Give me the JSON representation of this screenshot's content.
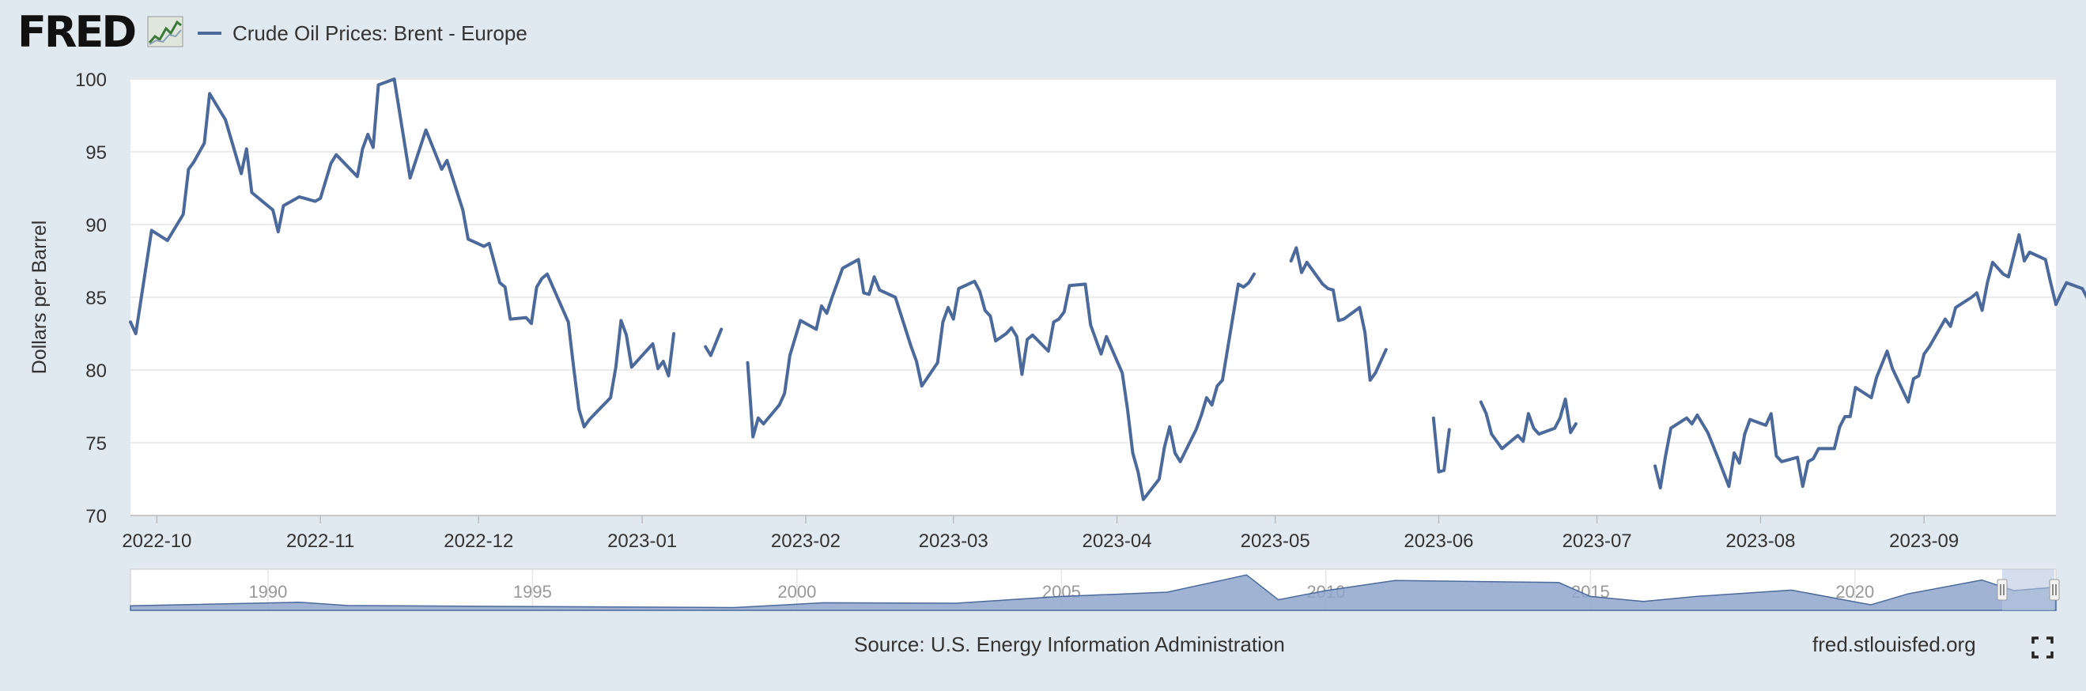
{
  "brand": {
    "logo": "FRED",
    "icon": "line-chart-icon"
  },
  "colors": {
    "series": "#4b6a9b",
    "navigator_fill": "#8fa6cc",
    "navigator_mask": "#b6c6e0",
    "background": "#e1e9f0"
  },
  "source": "Source: U.S. Energy Information Administration",
  "site": "fred.stlouisfed.org",
  "chart_data": {
    "type": "line",
    "title": "",
    "ylabel": "Dollars per Barrel",
    "ylim": [
      70,
      100
    ],
    "yticks": [
      70,
      75,
      80,
      85,
      90,
      95,
      100
    ],
    "xlim": [
      "2022-09-26",
      "2023-09-26"
    ],
    "xticks": [
      "2022-10",
      "2022-11",
      "2022-12",
      "2023-01",
      "2023-02",
      "2023-03",
      "2023-04",
      "2023-05",
      "2023-06",
      "2023-07",
      "2023-08",
      "2023-09"
    ],
    "grid": true,
    "legend_position": "top-left",
    "series": [
      {
        "name": "Crude Oil Prices: Brent - Europe",
        "segments": [
          [
            [
              "2022-09-26",
              83.3
            ],
            [
              "2022-09-27",
              82.5
            ],
            [
              "2022-09-30",
              89.6
            ],
            [
              "2022-10-03",
              88.9
            ],
            [
              "2022-10-06",
              90.7
            ],
            [
              "2022-10-07",
              93.8
            ],
            [
              "2022-10-08",
              94.3
            ],
            [
              "2022-10-10",
              95.6
            ],
            [
              "2022-10-11",
              99.0
            ],
            [
              "2022-10-14",
              97.2
            ],
            [
              "2022-10-17",
              93.5
            ],
            [
              "2022-10-18",
              95.2
            ],
            [
              "2022-10-19",
              92.2
            ],
            [
              "2022-10-23",
              91.0
            ],
            [
              "2022-10-24",
              89.5
            ],
            [
              "2022-10-25",
              91.3
            ],
            [
              "2022-10-28",
              91.9
            ],
            [
              "2022-10-31",
              91.6
            ],
            [
              "2022-11-01",
              91.8
            ],
            [
              "2022-11-03",
              94.2
            ],
            [
              "2022-11-04",
              94.8
            ],
            [
              "2022-11-08",
              93.3
            ],
            [
              "2022-11-09",
              95.2
            ],
            [
              "2022-11-10",
              96.2
            ],
            [
              "2022-11-11",
              95.3
            ],
            [
              "2022-11-12",
              99.6
            ],
            [
              "2022-11-15",
              100.0
            ],
            [
              "2022-11-18",
              93.2
            ],
            [
              "2022-11-21",
              96.5
            ],
            [
              "2022-11-24",
              93.8
            ],
            [
              "2022-11-25",
              94.4
            ],
            [
              "2022-11-28",
              91.0
            ],
            [
              "2022-11-29",
              89.0
            ],
            [
              "2022-12-02",
              88.5
            ],
            [
              "2022-12-03",
              88.7
            ],
            [
              "2022-12-05",
              86.0
            ],
            [
              "2022-12-06",
              85.7
            ],
            [
              "2022-12-07",
              83.5
            ],
            [
              "2022-12-10",
              83.6
            ],
            [
              "2022-12-11",
              83.2
            ],
            [
              "2022-12-12",
              85.7
            ],
            [
              "2022-12-13",
              86.3
            ],
            [
              "2022-12-14",
              86.6
            ],
            [
              "2022-12-18",
              83.3
            ],
            [
              "2022-12-19",
              80.2
            ],
            [
              "2022-12-20",
              77.3
            ],
            [
              "2022-12-21",
              76.1
            ],
            [
              "2022-12-22",
              76.6
            ],
            [
              "2022-12-26",
              78.1
            ],
            [
              "2022-12-27",
              80.2
            ],
            [
              "2022-12-28",
              83.4
            ],
            [
              "2022-12-29",
              82.4
            ],
            [
              "2022-12-30",
              80.2
            ],
            [
              "2023-01-03",
              81.8
            ],
            [
              "2023-01-04",
              80.1
            ],
            [
              "2023-01-05",
              80.6
            ],
            [
              "2023-01-06",
              79.6
            ],
            [
              "2023-01-07",
              82.5
            ]
          ],
          [
            [
              "2023-01-13",
              81.6
            ],
            [
              "2023-01-14",
              81.0
            ],
            [
              "2023-01-16",
              82.8
            ]
          ],
          [
            [
              "2023-01-21",
              80.5
            ],
            [
              "2023-01-22",
              75.4
            ],
            [
              "2023-01-23",
              76.7
            ],
            [
              "2023-01-24",
              76.3
            ],
            [
              "2023-01-27",
              77.6
            ],
            [
              "2023-01-28",
              78.4
            ],
            [
              "2023-01-29",
              81.0
            ],
            [
              "2023-01-31",
              83.4
            ],
            [
              "2023-02-03",
              82.8
            ],
            [
              "2023-02-04",
              84.4
            ],
            [
              "2023-02-05",
              83.9
            ],
            [
              "2023-02-06",
              85.0
            ],
            [
              "2023-02-08",
              87.0
            ],
            [
              "2023-02-11",
              87.6
            ],
            [
              "2023-02-12",
              85.3
            ],
            [
              "2023-02-13",
              85.2
            ],
            [
              "2023-02-14",
              86.4
            ],
            [
              "2023-02-15",
              85.5
            ],
            [
              "2023-02-18",
              85.0
            ],
            [
              "2023-02-21",
              81.6
            ],
            [
              "2023-02-22",
              80.6
            ],
            [
              "2023-02-23",
              78.9
            ],
            [
              "2023-02-26",
              80.5
            ],
            [
              "2023-02-27",
              83.3
            ],
            [
              "2023-02-28",
              84.3
            ],
            [
              "2023-03-01",
              83.5
            ],
            [
              "2023-03-02",
              85.6
            ],
            [
              "2023-03-05",
              86.1
            ],
            [
              "2023-03-06",
              85.4
            ],
            [
              "2023-03-07",
              84.1
            ],
            [
              "2023-03-08",
              83.7
            ],
            [
              "2023-03-09",
              82.0
            ],
            [
              "2023-03-11",
              82.5
            ],
            [
              "2023-03-12",
              82.9
            ],
            [
              "2023-03-13",
              82.3
            ],
            [
              "2023-03-14",
              79.7
            ],
            [
              "2023-03-15",
              82.1
            ],
            [
              "2023-03-16",
              82.4
            ],
            [
              "2023-03-19",
              81.3
            ],
            [
              "2023-03-20",
              83.3
            ],
            [
              "2023-03-21",
              83.5
            ],
            [
              "2023-03-22",
              84.0
            ],
            [
              "2023-03-23",
              85.8
            ],
            [
              "2023-03-26",
              85.9
            ],
            [
              "2023-03-27",
              83.1
            ],
            [
              "2023-03-29",
              81.1
            ],
            [
              "2023-03-30",
              82.3
            ],
            [
              "2023-04-02",
              79.8
            ],
            [
              "2023-04-03",
              77.3
            ],
            [
              "2023-04-04",
              74.3
            ],
            [
              "2023-04-05",
              73.0
            ],
            [
              "2023-04-06",
              71.1
            ],
            [
              "2023-04-09",
              72.5
            ],
            [
              "2023-04-10",
              74.7
            ],
            [
              "2023-04-11",
              76.1
            ],
            [
              "2023-04-12",
              74.3
            ],
            [
              "2023-04-13",
              73.7
            ],
            [
              "2023-04-16",
              75.9
            ],
            [
              "2023-04-17",
              76.9
            ],
            [
              "2023-04-18",
              78.1
            ],
            [
              "2023-04-19",
              77.6
            ],
            [
              "2023-04-20",
              78.9
            ],
            [
              "2023-04-21",
              79.3
            ],
            [
              "2023-04-24",
              85.9
            ],
            [
              "2023-04-25",
              85.7
            ],
            [
              "2023-04-26",
              86.0
            ],
            [
              "2023-04-27",
              86.6
            ]
          ],
          [
            [
              "2023-05-04",
              87.5
            ],
            [
              "2023-05-05",
              88.4
            ],
            [
              "2023-05-06",
              86.7
            ],
            [
              "2023-05-07",
              87.4
            ],
            [
              "2023-05-10",
              85.9
            ],
            [
              "2023-05-11",
              85.6
            ],
            [
              "2023-05-12",
              85.5
            ],
            [
              "2023-05-13",
              83.4
            ],
            [
              "2023-05-14",
              83.5
            ],
            [
              "2023-05-17",
              84.3
            ],
            [
              "2023-05-18",
              82.6
            ],
            [
              "2023-05-19",
              79.3
            ],
            [
              "2023-05-20",
              79.8
            ],
            [
              "2023-05-22",
              81.4
            ]
          ],
          [
            [
              "2023-05-31",
              76.7
            ],
            [
              "2023-06-01",
              73.0
            ],
            [
              "2023-06-02",
              73.1
            ],
            [
              "2023-06-03",
              75.9
            ]
          ],
          [
            [
              "2023-06-09",
              77.8
            ],
            [
              "2023-06-10",
              77.0
            ],
            [
              "2023-06-11",
              75.6
            ],
            [
              "2023-06-13",
              74.6
            ],
            [
              "2023-06-16",
              75.5
            ],
            [
              "2023-06-17",
              75.1
            ],
            [
              "2023-06-18",
              77.0
            ],
            [
              "2023-06-19",
              76.0
            ],
            [
              "2023-06-20",
              75.6
            ],
            [
              "2023-06-23",
              76.0
            ],
            [
              "2023-06-24",
              76.7
            ],
            [
              "2023-06-25",
              78.0
            ],
            [
              "2023-06-26",
              75.7
            ],
            [
              "2023-06-27",
              76.3
            ]
          ],
          [
            [
              "2023-07-12",
              73.4
            ],
            [
              "2023-07-13",
              71.9
            ],
            [
              "2023-07-14",
              74.1
            ],
            [
              "2023-07-15",
              76.0
            ],
            [
              "2023-07-18",
              76.7
            ],
            [
              "2023-07-19",
              76.3
            ],
            [
              "2023-07-20",
              76.9
            ],
            [
              "2023-07-22",
              75.7
            ],
            [
              "2023-07-23",
              74.8
            ],
            [
              "2023-07-24",
              73.9
            ],
            [
              "2023-07-26",
              72.0
            ],
            [
              "2023-07-27",
              74.3
            ],
            [
              "2023-07-28",
              73.6
            ],
            [
              "2023-07-29",
              75.6
            ],
            [
              "2023-07-30",
              76.6
            ],
            [
              "2023-08-02",
              76.2
            ],
            [
              "2023-08-03",
              77.0
            ],
            [
              "2023-08-04",
              74.1
            ],
            [
              "2023-08-05",
              73.7
            ],
            [
              "2023-08-08",
              74.0
            ],
            [
              "2023-08-09",
              72.0
            ],
            [
              "2023-08-10",
              73.7
            ],
            [
              "2023-08-11",
              73.9
            ],
            [
              "2023-08-12",
              74.6
            ],
            [
              "2023-08-15",
              74.6
            ],
            [
              "2023-08-16",
              76.1
            ],
            [
              "2023-08-17",
              76.8
            ],
            [
              "2023-08-18",
              76.8
            ],
            [
              "2023-08-19",
              78.8
            ],
            [
              "2023-08-22",
              78.1
            ],
            [
              "2023-08-23",
              79.5
            ],
            [
              "2023-08-25",
              81.3
            ],
            [
              "2023-08-26",
              80.1
            ],
            [
              "2023-08-29",
              77.8
            ],
            [
              "2023-08-30",
              79.4
            ],
            [
              "2023-08-31",
              79.6
            ],
            [
              "2023-09-01",
              81.1
            ],
            [
              "2023-09-02",
              81.6
            ],
            [
              "2023-09-05",
              83.5
            ],
            [
              "2023-09-06",
              83.0
            ],
            [
              "2023-09-07",
              84.3
            ],
            [
              "2023-09-10",
              85.0
            ],
            [
              "2023-09-11",
              85.3
            ],
            [
              "2023-09-12",
              84.1
            ],
            [
              "2023-09-13",
              86.0
            ],
            [
              "2023-09-14",
              87.4
            ],
            [
              "2023-09-16",
              86.6
            ],
            [
              "2023-09-17",
              86.4
            ],
            [
              "2023-09-19",
              89.3
            ],
            [
              "2023-09-20",
              87.5
            ],
            [
              "2023-09-21",
              88.1
            ],
            [
              "2023-09-24",
              87.6
            ],
            [
              "2023-09-25",
              86.0
            ],
            [
              "2023-09-26",
              84.5
            ],
            [
              "2023-09-27",
              85.3
            ],
            [
              "2023-09-28",
              86.0
            ],
            [
              "2023-10-01",
              85.6
            ],
            [
              "2023-10-02",
              84.9
            ],
            [
              "2023-10-03",
              84.0
            ],
            [
              "2023-10-04",
              84.0
            ],
            [
              "2023-10-05",
              85.4
            ]
          ]
        ]
      }
    ],
    "navigator": {
      "x_labels": [
        "1990",
        "1995",
        "2000",
        "2005",
        "2010",
        "2015",
        "2020"
      ],
      "range_selected": [
        "2022-09-26",
        "2023-09-26"
      ]
    }
  }
}
